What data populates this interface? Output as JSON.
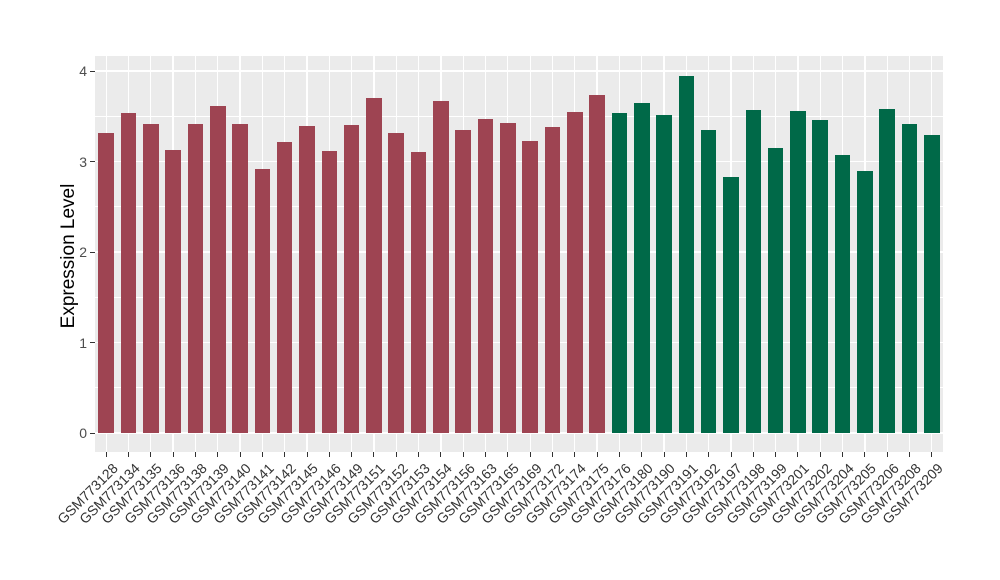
{
  "chart_data": {
    "type": "bar",
    "title": "",
    "xlabel": "",
    "ylabel": "Expression Level",
    "ylim": [
      0,
      4.17
    ],
    "yticks": [
      0,
      1,
      2,
      3,
      4
    ],
    "grid": "white major+minor horizontal lines, white vertical line per category, gray panel background",
    "legend_position": "none",
    "categories": [
      "GSM773128",
      "GSM773134",
      "GSM773135",
      "GSM773136",
      "GSM773138",
      "GSM773139",
      "GSM773140",
      "GSM773141",
      "GSM773142",
      "GSM773145",
      "GSM773146",
      "GSM773149",
      "GSM773151",
      "GSM773152",
      "GSM773153",
      "GSM773154",
      "GSM773156",
      "GSM773163",
      "GSM773165",
      "GSM773169",
      "GSM773172",
      "GSM773174",
      "GSM773175",
      "GSM773176",
      "GSM773180",
      "GSM773190",
      "GSM773191",
      "GSM773192",
      "GSM773197",
      "GSM773198",
      "GSM773199",
      "GSM773201",
      "GSM773202",
      "GSM773204",
      "GSM773205",
      "GSM773206",
      "GSM773208",
      "GSM773209"
    ],
    "values": [
      3.32,
      3.54,
      3.42,
      3.13,
      3.41,
      3.61,
      3.42,
      2.92,
      3.22,
      3.39,
      3.12,
      3.4,
      3.7,
      3.31,
      3.11,
      3.67,
      3.35,
      3.47,
      3.43,
      3.23,
      3.38,
      3.55,
      3.73,
      3.54,
      3.65,
      3.51,
      3.95,
      3.35,
      2.83,
      3.57,
      3.15,
      3.56,
      3.46,
      3.07,
      2.9,
      3.58,
      3.42,
      3.29
    ],
    "bar_groups": [
      "maroon",
      "maroon",
      "maroon",
      "maroon",
      "maroon",
      "maroon",
      "maroon",
      "maroon",
      "maroon",
      "maroon",
      "maroon",
      "maroon",
      "maroon",
      "maroon",
      "maroon",
      "maroon",
      "maroon",
      "maroon",
      "maroon",
      "maroon",
      "maroon",
      "maroon",
      "maroon",
      "green",
      "green",
      "green",
      "green",
      "green",
      "green",
      "green",
      "green",
      "green",
      "green",
      "green",
      "green",
      "green",
      "green",
      "green"
    ],
    "colors": {
      "maroon": "#9E4452",
      "green": "#006948",
      "panel_bg": "#EBEBEB",
      "gridline": "#FFFFFF",
      "tick": "#333333",
      "axis_text": "#4D4D4D",
      "axis_title": "#000000"
    }
  }
}
